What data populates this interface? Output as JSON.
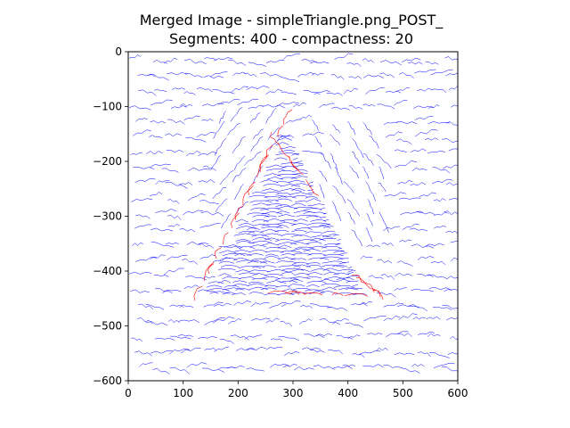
{
  "chart_data": {
    "type": "line",
    "title": "Merged Image - simpleTriangle.png_POST_",
    "subtitle": "Segments: 400 - compactness: 20",
    "xlabel": "",
    "ylabel": "",
    "xlim": [
      0,
      600
    ],
    "ylim": [
      -600,
      0
    ],
    "x_ticks": [
      0,
      100,
      200,
      300,
      400,
      500,
      600
    ],
    "y_ticks": [
      0,
      -100,
      -200,
      -300,
      -400,
      -500,
      -600
    ],
    "x_tick_labels": [
      "0",
      "100",
      "200",
      "300",
      "400",
      "500",
      "600"
    ],
    "y_tick_labels": [
      "0",
      "−100",
      "−200",
      "−300",
      "−400",
      "−500",
      "−600"
    ],
    "grid": false,
    "colors": {
      "background_strokes": "#0000ff",
      "boundary_strokes": "#ff0000"
    },
    "shapes": {
      "triangle_vertices": [
        [
          120,
          -455
        ],
        [
          285,
          -130
        ],
        [
          440,
          -450
        ]
      ]
    },
    "series": [
      {
        "color": "#0000ff",
        "description_key": "flow_field",
        "count": 240
      },
      {
        "color": "#ff0000",
        "description_key": "edges",
        "count": 30
      }
    ]
  }
}
